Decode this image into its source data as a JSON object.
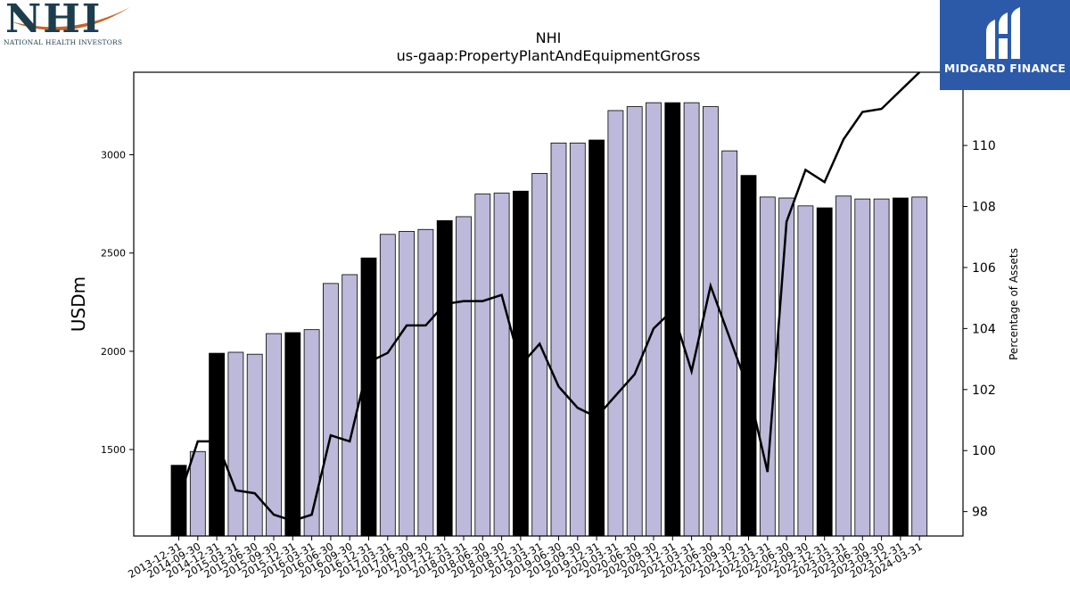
{
  "logos": {
    "left": {
      "text": "NHI",
      "subtitle": "NATIONAL HEALTH INVESTORS"
    },
    "right": {
      "text": "MIDGARD FINANCE"
    }
  },
  "colors": {
    "bar_light": "#bcb9da",
    "bar_dark": "#000000",
    "line": "#000000",
    "logo_blue": "#2c5aa8",
    "logo_swoosh": "#c8642a"
  },
  "chart_data": {
    "type": "bar",
    "title": "NHI",
    "subtitle": "us-gaap:PropertyPlantAndEquipmentGross",
    "ylabel": "USDm",
    "y2label": "Percentage of Assets",
    "ylim": [
      1060,
      3420
    ],
    "y2lim": [
      97.2,
      112.4
    ],
    "yticks": [
      1500,
      2000,
      2500,
      3000
    ],
    "y2ticks": [
      98,
      100,
      102,
      104,
      106,
      108,
      110
    ],
    "categories": [
      "2013-12-31",
      "2014-09-30",
      "2014-12-31",
      "2015-03-31",
      "2015-06-30",
      "2015-09-30",
      "2015-12-31",
      "2016-03-31",
      "2016-06-30",
      "2016-09-30",
      "2016-12-31",
      "2017-03-31",
      "2017-06-30",
      "2017-09-30",
      "2017-12-31",
      "2018-03-31",
      "2018-06-30",
      "2018-09-30",
      "2018-12-31",
      "2019-03-31",
      "2019-06-30",
      "2019-09-30",
      "2019-12-31",
      "2020-03-31",
      "2020-06-30",
      "2020-09-30",
      "2020-12-31",
      "2021-03-31",
      "2021-06-30",
      "2021-09-30",
      "2021-12-31",
      "2022-03-31",
      "2022-06-30",
      "2022-09-30",
      "2022-12-31",
      "2023-03-31",
      "2023-06-30",
      "2023-09-30",
      "2023-12-31",
      "2024-03-31"
    ],
    "series": [
      {
        "type": "bar",
        "values": [
          1420,
          1490,
          1990,
          1995,
          1985,
          2090,
          2095,
          2110,
          2345,
          2390,
          2475,
          2595,
          2610,
          2620,
          2665,
          2685,
          2800,
          2805,
          2815,
          2905,
          3060,
          3060,
          3075,
          3225,
          3245,
          3265,
          3265,
          3265,
          3245,
          3020,
          2895,
          2785,
          2780,
          2740,
          2730,
          2790,
          2775,
          2775,
          2780,
          2785
        ],
        "highlight": [
          true,
          false,
          true,
          false,
          false,
          false,
          true,
          false,
          false,
          false,
          true,
          false,
          false,
          false,
          true,
          false,
          false,
          false,
          true,
          false,
          false,
          false,
          true,
          false,
          false,
          false,
          true,
          false,
          false,
          false,
          true,
          false,
          false,
          false,
          true,
          false,
          false,
          false,
          true,
          false
        ]
      },
      {
        "type": "line",
        "axis": "right",
        "values": [
          98.4,
          100.3,
          100.3,
          98.7,
          98.6,
          97.9,
          97.7,
          97.9,
          100.5,
          100.3,
          102.9,
          103.2,
          104.1,
          104.1,
          104.8,
          104.9,
          104.9,
          105.1,
          102.8,
          103.5,
          102.1,
          101.4,
          101.1,
          101.8,
          102.5,
          104.0,
          104.6,
          102.6,
          105.4,
          103.7,
          102.0,
          99.3,
          107.5,
          109.2,
          108.8,
          110.2,
          111.1,
          111.2,
          111.8,
          112.4
        ]
      }
    ]
  }
}
